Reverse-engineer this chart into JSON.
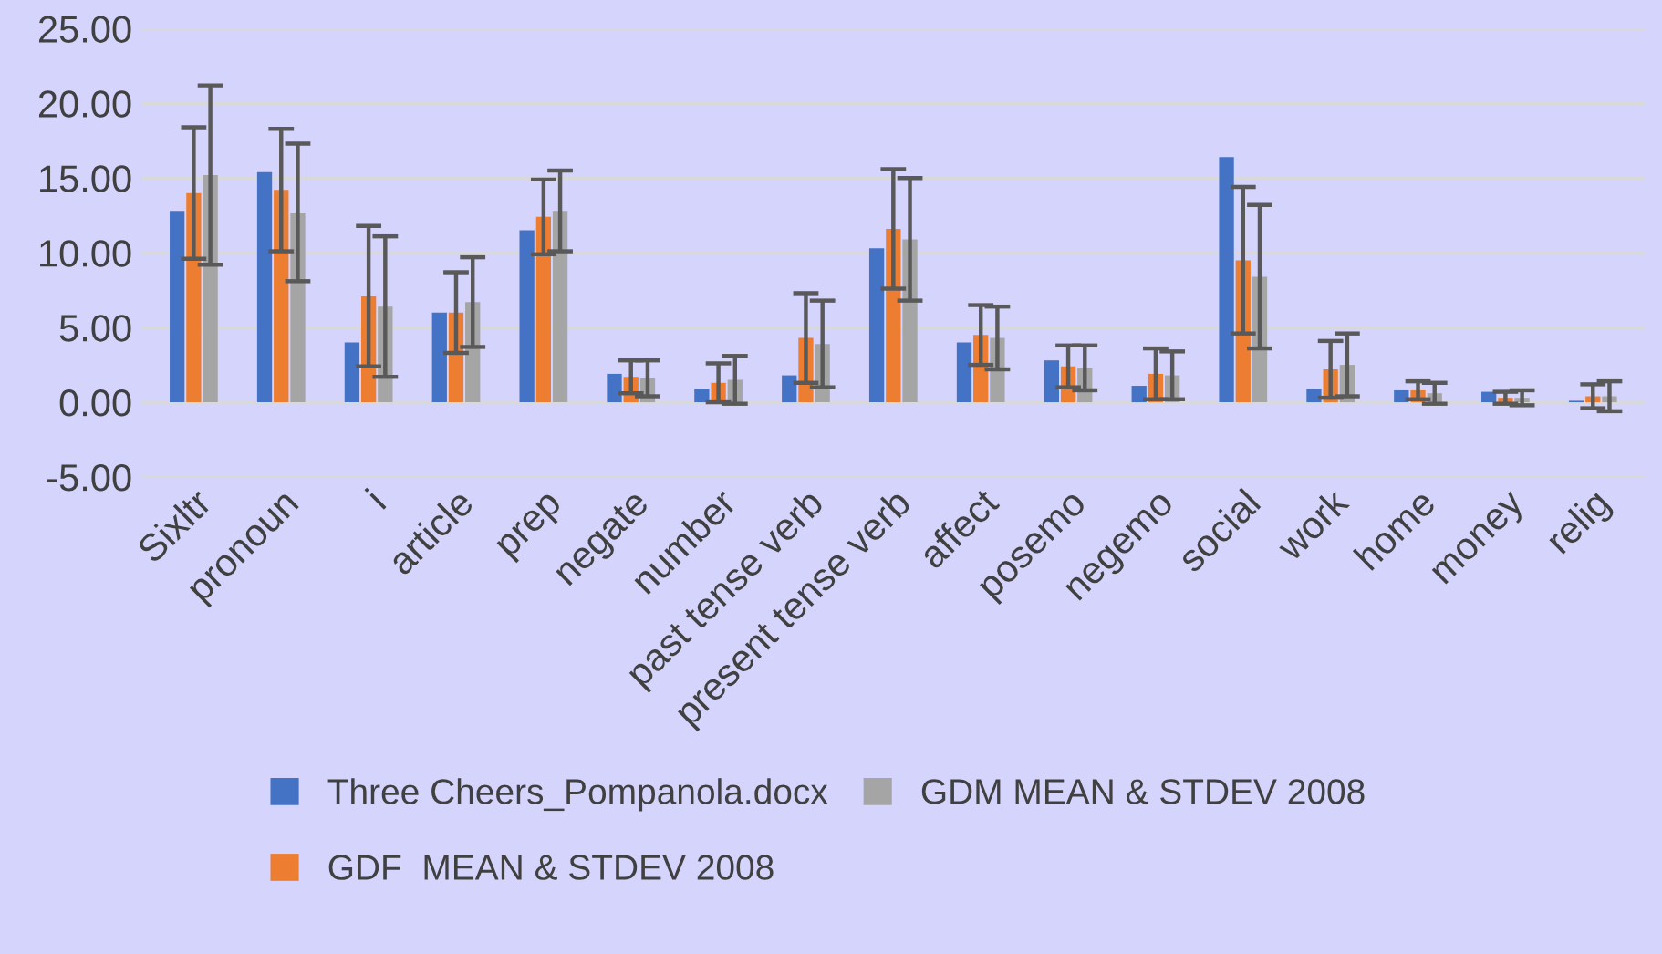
{
  "chart_data": {
    "type": "bar",
    "categories": [
      "Sixltr",
      "pronoun",
      "i",
      "article",
      "prep",
      "negate",
      "number",
      "past tense verb",
      "present tense verb",
      "affect",
      "posemo",
      "negemo",
      "social",
      "work",
      "home",
      "money",
      "relig"
    ],
    "series": [
      {
        "name": "Three Cheers_Pompanola.docx",
        "color": "#4472c4",
        "values": [
          12.8,
          15.4,
          4.0,
          6.0,
          11.5,
          1.9,
          0.9,
          1.8,
          10.3,
          4.0,
          2.8,
          1.1,
          16.4,
          0.9,
          0.8,
          0.7,
          0.1
        ]
      },
      {
        "name": "GDF  MEAN & STDEV 2008",
        "color": "#ed7d31",
        "values": [
          14.0,
          14.2,
          7.1,
          6.0,
          12.4,
          1.7,
          1.3,
          4.3,
          11.6,
          4.5,
          2.4,
          1.9,
          9.5,
          2.2,
          0.8,
          0.3,
          0.4
        ],
        "errors": [
          4.4,
          4.1,
          4.7,
          2.7,
          2.5,
          1.1,
          1.3,
          3.0,
          4.0,
          2.0,
          1.4,
          1.7,
          4.9,
          1.9,
          0.6,
          0.4,
          0.8
        ]
      },
      {
        "name": "GDM MEAN & STDEV 2008",
        "color": "#a5a5a5",
        "values": [
          15.2,
          12.7,
          6.4,
          6.7,
          12.8,
          1.6,
          1.5,
          3.9,
          10.9,
          4.3,
          2.3,
          1.8,
          8.4,
          2.5,
          0.6,
          0.3,
          0.4
        ],
        "errors": [
          6.0,
          4.6,
          4.7,
          3.0,
          2.7,
          1.2,
          1.6,
          2.9,
          4.1,
          2.1,
          1.5,
          1.6,
          4.8,
          2.1,
          0.7,
          0.5,
          1.0
        ]
      }
    ],
    "ylim": [
      -5,
      25
    ],
    "yticks": [
      {
        "value": -5,
        "label": "-5.00"
      },
      {
        "value": 0,
        "label": "0.00"
      },
      {
        "value": 5,
        "label": "5.00"
      },
      {
        "value": 10,
        "label": "10.00"
      },
      {
        "value": 15,
        "label": "15.00"
      },
      {
        "value": 20,
        "label": "20.00"
      },
      {
        "value": 25,
        "label": "25.00"
      }
    ],
    "grid": "y",
    "legend": "bottom"
  }
}
